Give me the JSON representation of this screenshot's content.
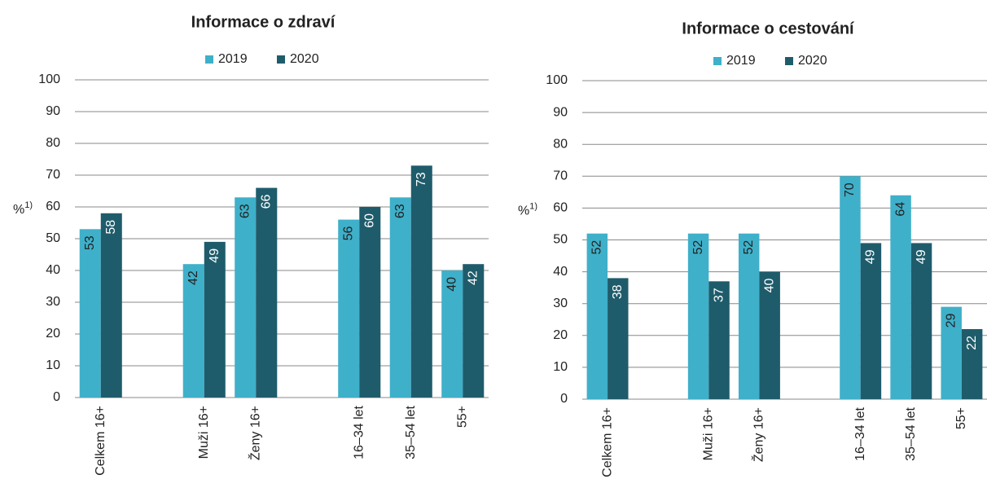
{
  "chart_data": [
    {
      "type": "bar",
      "title": "Informace o zdraví",
      "y_label": "%",
      "y_label_note": "1)",
      "categories": [
        "Celkem 16+",
        null,
        "Muži 16+",
        "Ženy 16+",
        null,
        "16–34 let",
        "35–54 let",
        "55+"
      ],
      "series": [
        {
          "name": "2019",
          "color": "#3fb0c9",
          "values": [
            53,
            null,
            42,
            63,
            null,
            56,
            63,
            40
          ]
        },
        {
          "name": "2020",
          "color": "#1f5c6b",
          "values": [
            58,
            null,
            49,
            66,
            null,
            60,
            73,
            42
          ]
        }
      ],
      "ylim": [
        0,
        100
      ],
      "yticks": [
        0,
        10,
        20,
        30,
        40,
        50,
        60,
        70,
        80,
        90,
        100
      ],
      "grid": true,
      "legend": "top"
    },
    {
      "type": "bar",
      "title": "Informace o cestování",
      "y_label": "%",
      "y_label_note": "1)",
      "categories": [
        "Celkem 16+",
        null,
        "Muži 16+",
        "Ženy 16+",
        null,
        "16–34 let",
        "35–54 let",
        "55+"
      ],
      "series": [
        {
          "name": "2019",
          "color": "#3fb0c9",
          "values": [
            52,
            null,
            52,
            52,
            null,
            70,
            64,
            29
          ]
        },
        {
          "name": "2020",
          "color": "#1f5c6b",
          "values": [
            38,
            null,
            37,
            40,
            null,
            49,
            49,
            22
          ]
        }
      ],
      "ylim": [
        0,
        100
      ],
      "yticks": [
        0,
        10,
        20,
        30,
        40,
        50,
        60,
        70,
        80,
        90,
        100
      ],
      "grid": true,
      "legend": "top"
    }
  ]
}
